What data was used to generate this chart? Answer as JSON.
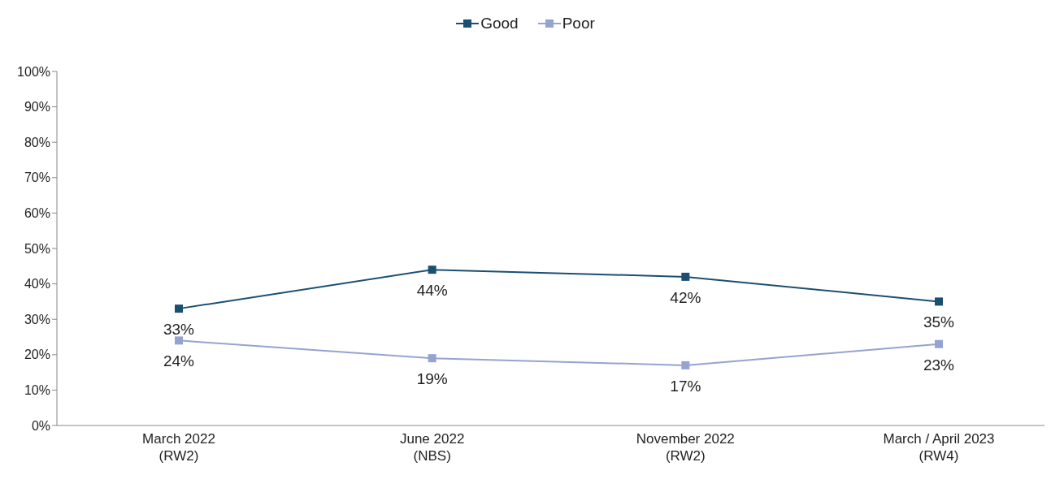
{
  "chart_data": {
    "type": "line",
    "categories": [
      "March 2022\n(RW2)",
      "June 2022\n(NBS)",
      "November 2022\n(RW2)",
      "March / April 2023\n(RW4)"
    ],
    "series": [
      {
        "name": "Good",
        "color": "#1b4f72",
        "values": [
          33,
          44,
          42,
          35
        ],
        "value_labels": [
          "33%",
          "44%",
          "42%",
          "35%"
        ]
      },
      {
        "name": "Poor",
        "color": "#95a3d1",
        "values": [
          24,
          19,
          17,
          23
        ],
        "value_labels": [
          "24%",
          "19%",
          "17%",
          "23%"
        ]
      }
    ],
    "ylim": [
      0,
      100
    ],
    "yticks": [
      {
        "value": 0,
        "label": "0%"
      },
      {
        "value": 10,
        "label": "10%"
      },
      {
        "value": 20,
        "label": "20%"
      },
      {
        "value": 30,
        "label": "30%"
      },
      {
        "value": 40,
        "label": "40%"
      },
      {
        "value": 50,
        "label": "50%"
      },
      {
        "value": 60,
        "label": "60%"
      },
      {
        "value": 70,
        "label": "70%"
      },
      {
        "value": 80,
        "label": "80%"
      },
      {
        "value": 90,
        "label": "90%"
      },
      {
        "value": 100,
        "label": "100%"
      }
    ],
    "grid": false,
    "legend": "top",
    "marker": "square",
    "line_style": "solid"
  }
}
